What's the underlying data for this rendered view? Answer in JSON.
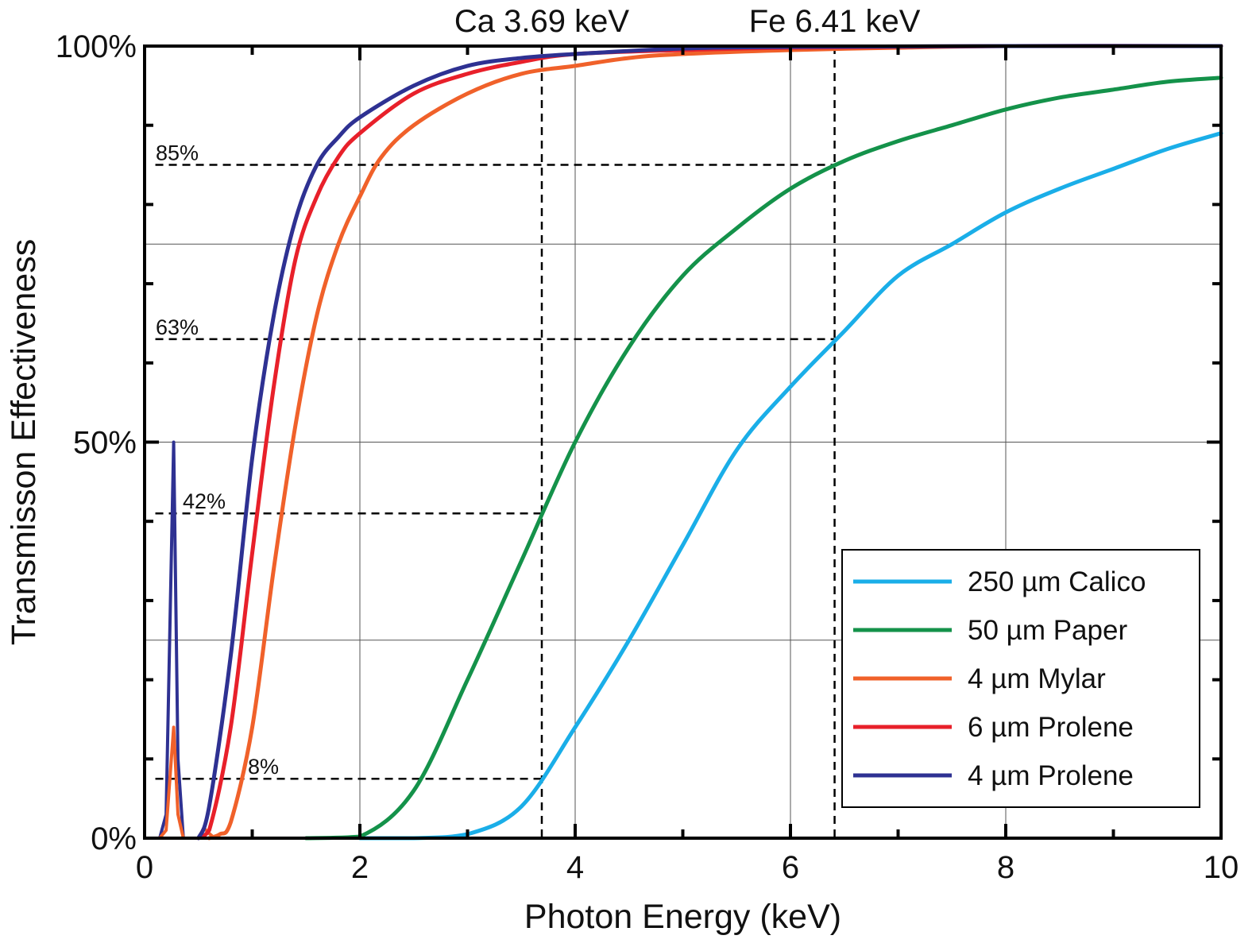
{
  "chart_data": {
    "type": "line",
    "title": "",
    "xlabel": "Photon Energy (keV)",
    "ylabel": "Transmisson Effectiveness",
    "xlim": [
      0,
      10
    ],
    "ylim": [
      0,
      100
    ],
    "grid": true,
    "legend_position": "bottom-right",
    "x_ticks": [
      {
        "value": 0,
        "label": "0"
      },
      {
        "value": 2,
        "label": "2"
      },
      {
        "value": 4,
        "label": "4"
      },
      {
        "value": 6,
        "label": "6"
      },
      {
        "value": 8,
        "label": "8"
      },
      {
        "value": 10,
        "label": "10"
      }
    ],
    "y_ticks": [
      {
        "value": 0,
        "label": "0%"
      },
      {
        "value": 50,
        "label": "50%"
      },
      {
        "value": 100,
        "label": "100%"
      }
    ],
    "reference_lines": [
      {
        "label": "Ca 3.69 keV",
        "x": 3.69
      },
      {
        "label": "Fe 6.41 keV",
        "x": 6.41
      }
    ],
    "annotations": [
      {
        "label": "85%",
        "y": 85,
        "x_end": 6.41
      },
      {
        "label": "63%",
        "y": 63,
        "x_end": 6.41
      },
      {
        "label": "42%",
        "y": 41,
        "x_end": 3.69
      },
      {
        "label": "8%",
        "y": 7.5,
        "x_end": 3.69
      }
    ],
    "series": [
      {
        "name": "250 µm Calico",
        "color": "#1aaee8",
        "x": [
          2.0,
          2.5,
          3.0,
          3.5,
          4.0,
          4.5,
          5.0,
          5.5,
          6.0,
          6.5,
          7.0,
          7.5,
          8.0,
          8.5,
          9.0,
          9.5,
          10.0
        ],
        "y": [
          0,
          0,
          0.5,
          4,
          14,
          25,
          37,
          49,
          57,
          64,
          71,
          75,
          79,
          82,
          84.5,
          87,
          89
        ]
      },
      {
        "name": "50 µm Paper",
        "color": "#14924a",
        "x": [
          1.5,
          2.0,
          2.5,
          3.0,
          3.5,
          4.0,
          4.5,
          5.0,
          5.5,
          6.0,
          6.5,
          7.0,
          7.5,
          8.0,
          8.5,
          9.0,
          9.5,
          10.0
        ],
        "y": [
          0,
          0.2,
          6,
          20,
          35,
          50,
          62,
          71,
          77,
          82,
          85.5,
          88,
          90,
          92,
          93.5,
          94.5,
          95.5,
          96
        ]
      },
      {
        "name": "4 µm Mylar",
        "color": "#f0612a",
        "x": [
          0.6,
          0.7,
          0.8,
          1.0,
          1.2,
          1.4,
          1.6,
          1.8,
          2.0,
          2.2,
          2.5,
          3.0,
          3.5,
          4.0,
          4.5,
          5.0,
          6.0,
          7.0,
          8.0,
          10.0
        ],
        "y": [
          0,
          0.5,
          2,
          14,
          34,
          52,
          66,
          75,
          81,
          86,
          90,
          94,
          96.5,
          97.5,
          98.5,
          99,
          99.5,
          99.8,
          100,
          100
        ]
      },
      {
        "name": "6 µm Prolene",
        "color": "#e8202a",
        "x": [
          0.5,
          0.6,
          0.8,
          1.0,
          1.2,
          1.4,
          1.6,
          1.8,
          2.0,
          2.5,
          3.0,
          3.5,
          4.0,
          5.0,
          6.0,
          8.0,
          10.0
        ],
        "y": [
          0,
          1,
          14,
          36,
          57,
          73,
          81,
          86,
          89,
          94,
          96.5,
          98,
          99,
          99.5,
          99.8,
          100,
          100
        ]
      },
      {
        "name": "4 µm Prolene",
        "color": "#2e3192",
        "x": [
          0.5,
          0.6,
          0.8,
          1.0,
          1.2,
          1.4,
          1.6,
          1.8,
          2.0,
          2.5,
          3.0,
          3.5,
          4.0,
          5.0,
          6.0,
          8.0,
          10.0
        ],
        "y": [
          0,
          4,
          23,
          48,
          66,
          78,
          85,
          88.5,
          91,
          95,
          97.5,
          98.5,
          99,
          99.7,
          99.9,
          100,
          100
        ]
      }
    ],
    "spike_series": [
      {
        "color": "#2e3192",
        "x": [
          0.14,
          0.2,
          0.27,
          0.31,
          0.36
        ],
        "y": [
          0,
          3,
          50,
          10,
          0
        ]
      },
      {
        "color": "#f0612a",
        "x": [
          0.14,
          0.2,
          0.27,
          0.31,
          0.36
        ],
        "y": [
          0,
          1,
          14,
          3,
          0
        ]
      },
      {
        "color": "#f0612a",
        "x": [
          0.5,
          0.55,
          0.6,
          0.65
        ],
        "y": [
          0,
          1.3,
          0.6,
          0
        ]
      }
    ]
  }
}
